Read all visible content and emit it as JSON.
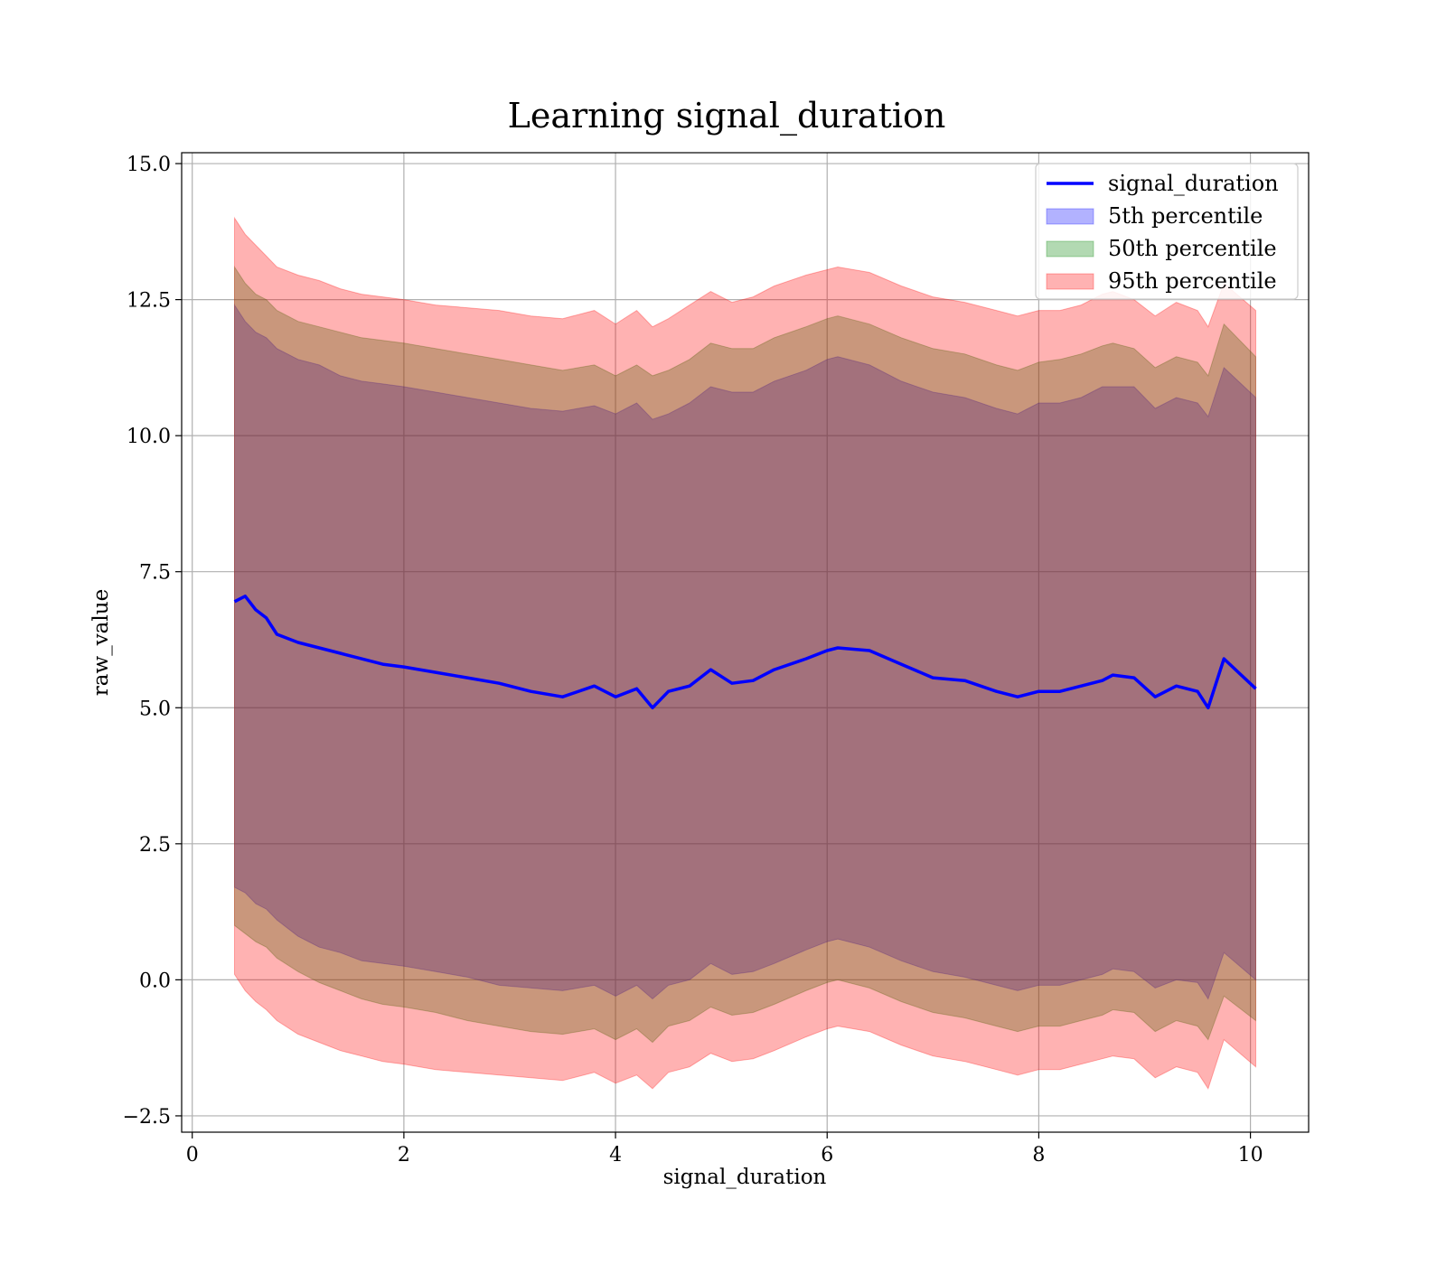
{
  "chart_data": {
    "type": "area",
    "title": "Learning signal_duration",
    "xlabel": "signal_duration",
    "ylabel": "raw_value",
    "xlim": [
      -0.1,
      10.55
    ],
    "ylim": [
      -2.8,
      15.2
    ],
    "grid": true,
    "legend_position": "top-right",
    "x_ticks": [
      0,
      2,
      4,
      6,
      8,
      10
    ],
    "x_tick_labels": [
      "0",
      "2",
      "4",
      "6",
      "8",
      "10"
    ],
    "y_ticks": [
      -2.5,
      0.0,
      2.5,
      5.0,
      7.5,
      10.0,
      12.5,
      15.0
    ],
    "y_tick_labels": [
      "−2.5",
      "0.0",
      "2.5",
      "5.0",
      "7.5",
      "10.0",
      "12.5",
      "15.0"
    ],
    "x": [
      0.4,
      0.5,
      0.6,
      0.7,
      0.8,
      1.0,
      1.2,
      1.4,
      1.6,
      1.8,
      2.0,
      2.3,
      2.6,
      2.9,
      3.2,
      3.5,
      3.8,
      4.0,
      4.2,
      4.35,
      4.5,
      4.7,
      4.9,
      5.1,
      5.3,
      5.5,
      5.8,
      6.0,
      6.1,
      6.4,
      6.7,
      7.0,
      7.3,
      7.6,
      7.8,
      8.0,
      8.2,
      8.4,
      8.6,
      8.7,
      8.9,
      9.1,
      9.3,
      9.5,
      9.6,
      9.75,
      10.05
    ],
    "series": [
      {
        "name": "signal_duration",
        "kind": "line",
        "color": "#0000ff",
        "values": [
          6.95,
          7.05,
          6.8,
          6.65,
          6.35,
          6.2,
          6.1,
          6.0,
          5.9,
          5.8,
          5.75,
          5.65,
          5.55,
          5.45,
          5.3,
          5.2,
          5.4,
          5.2,
          5.35,
          5.0,
          5.3,
          5.4,
          5.7,
          5.45,
          5.5,
          5.7,
          5.9,
          6.05,
          6.1,
          6.05,
          5.8,
          5.55,
          5.5,
          5.3,
          5.2,
          5.3,
          5.3,
          5.4,
          5.5,
          5.6,
          5.55,
          5.2,
          5.4,
          5.3,
          5.0,
          5.9,
          5.35
        ]
      },
      {
        "name": "5th percentile",
        "kind": "band",
        "color": "#0000ff",
        "upper": [
          12.4,
          12.1,
          11.9,
          11.8,
          11.6,
          11.4,
          11.3,
          11.1,
          11.0,
          10.95,
          10.9,
          10.8,
          10.7,
          10.6,
          10.5,
          10.45,
          10.55,
          10.4,
          10.6,
          10.3,
          10.4,
          10.6,
          10.9,
          10.8,
          10.8,
          11.0,
          11.2,
          11.4,
          11.45,
          11.3,
          11.0,
          10.8,
          10.7,
          10.5,
          10.4,
          10.6,
          10.6,
          10.7,
          10.9,
          10.9,
          10.9,
          10.5,
          10.7,
          10.6,
          10.35,
          11.25,
          10.7
        ],
        "lower": [
          1.7,
          1.6,
          1.4,
          1.3,
          1.1,
          0.8,
          0.6,
          0.5,
          0.35,
          0.3,
          0.25,
          0.15,
          0.05,
          -0.1,
          -0.15,
          -0.2,
          -0.1,
          -0.3,
          -0.1,
          -0.35,
          -0.1,
          0.0,
          0.3,
          0.1,
          0.15,
          0.3,
          0.55,
          0.7,
          0.75,
          0.6,
          0.35,
          0.15,
          0.05,
          -0.1,
          -0.2,
          -0.1,
          -0.1,
          0.0,
          0.1,
          0.2,
          0.15,
          -0.15,
          0.0,
          -0.05,
          -0.35,
          0.5,
          0.0
        ]
      },
      {
        "name": "50th percentile",
        "kind": "band",
        "color": "#008000",
        "upper": [
          13.1,
          12.8,
          12.6,
          12.5,
          12.3,
          12.1,
          12.0,
          11.9,
          11.8,
          11.75,
          11.7,
          11.6,
          11.5,
          11.4,
          11.3,
          11.2,
          11.3,
          11.1,
          11.3,
          11.1,
          11.2,
          11.4,
          11.7,
          11.6,
          11.6,
          11.8,
          12.0,
          12.15,
          12.2,
          12.05,
          11.8,
          11.6,
          11.5,
          11.3,
          11.2,
          11.35,
          11.4,
          11.5,
          11.65,
          11.7,
          11.6,
          11.25,
          11.45,
          11.35,
          11.1,
          12.05,
          11.45
        ],
        "lower": [
          1.0,
          0.85,
          0.7,
          0.6,
          0.4,
          0.15,
          -0.05,
          -0.2,
          -0.35,
          -0.45,
          -0.5,
          -0.6,
          -0.75,
          -0.85,
          -0.95,
          -1.0,
          -0.9,
          -1.1,
          -0.9,
          -1.15,
          -0.85,
          -0.75,
          -0.5,
          -0.65,
          -0.6,
          -0.45,
          -0.2,
          -0.05,
          0.0,
          -0.15,
          -0.4,
          -0.6,
          -0.7,
          -0.85,
          -0.95,
          -0.85,
          -0.85,
          -0.75,
          -0.65,
          -0.55,
          -0.6,
          -0.95,
          -0.75,
          -0.85,
          -1.1,
          -0.3,
          -0.75
        ]
      },
      {
        "name": "95th percentile",
        "kind": "band",
        "color": "#ff0000",
        "upper": [
          14.0,
          13.7,
          13.5,
          13.3,
          13.1,
          12.95,
          12.85,
          12.7,
          12.6,
          12.55,
          12.5,
          12.4,
          12.35,
          12.3,
          12.2,
          12.15,
          12.3,
          12.05,
          12.3,
          12.0,
          12.15,
          12.4,
          12.65,
          12.45,
          12.55,
          12.75,
          12.95,
          13.05,
          13.1,
          13.0,
          12.75,
          12.55,
          12.45,
          12.3,
          12.2,
          12.3,
          12.3,
          12.4,
          12.6,
          12.65,
          12.5,
          12.2,
          12.45,
          12.3,
          12.0,
          12.8,
          12.3
        ],
        "lower": [
          0.1,
          -0.2,
          -0.4,
          -0.55,
          -0.75,
          -1.0,
          -1.15,
          -1.3,
          -1.4,
          -1.5,
          -1.55,
          -1.65,
          -1.7,
          -1.75,
          -1.8,
          -1.85,
          -1.7,
          -1.9,
          -1.75,
          -2.0,
          -1.7,
          -1.6,
          -1.35,
          -1.5,
          -1.45,
          -1.3,
          -1.05,
          -0.9,
          -0.85,
          -0.95,
          -1.2,
          -1.4,
          -1.5,
          -1.65,
          -1.75,
          -1.65,
          -1.65,
          -1.55,
          -1.45,
          -1.4,
          -1.45,
          -1.8,
          -1.6,
          -1.7,
          -2.0,
          -1.1,
          -1.6
        ]
      }
    ]
  }
}
